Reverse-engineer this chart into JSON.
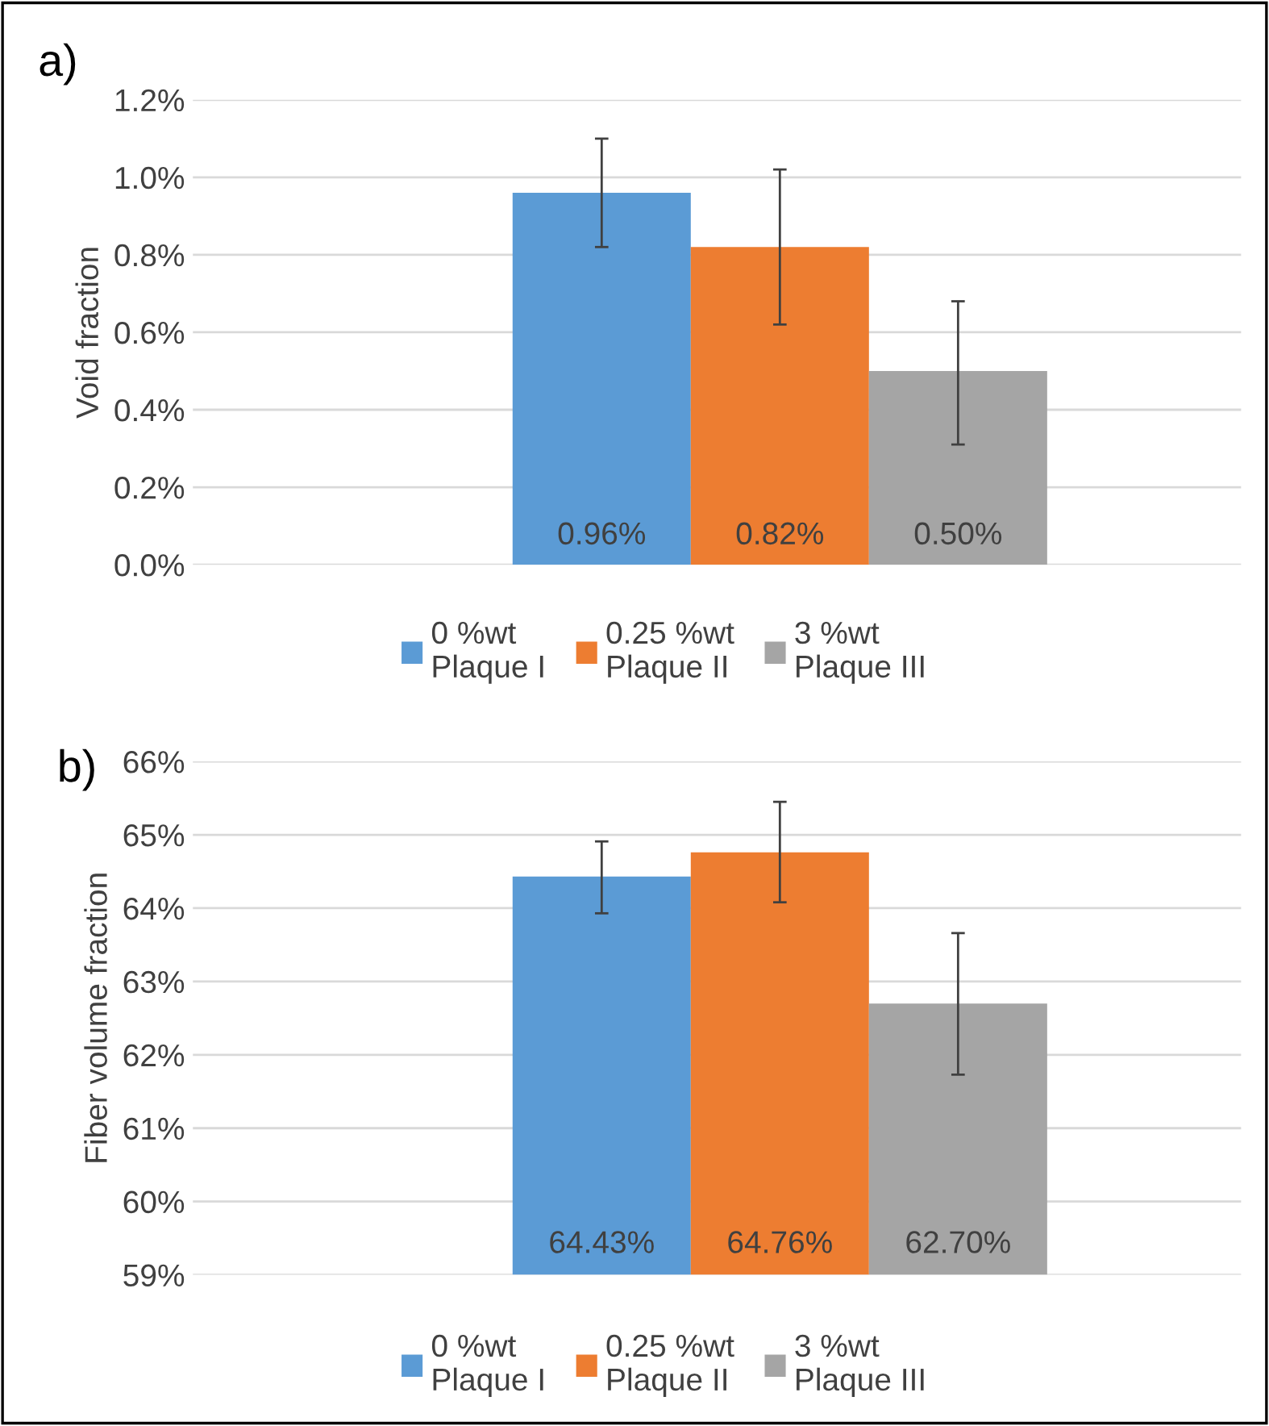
{
  "chart_data": [
    {
      "type": "bar",
      "annotations": [
        "a)"
      ],
      "ylabel": "Void fraction",
      "categories": [
        null
      ],
      "series": [
        {
          "name": "0 %wt\nPlaque I",
          "color": "#5b9bd5",
          "values": [
            0.96
          ],
          "errors": [
            [
              0.82,
              1.1
            ]
          ],
          "value_labels": [
            "0.96%"
          ]
        },
        {
          "name": "0.25 %wt\nPlaque II",
          "color": "#ed7d31",
          "values": [
            0.82
          ],
          "errors": [
            [
              0.62,
              1.02
            ]
          ],
          "value_labels": [
            "0.82%"
          ]
        },
        {
          "name": "3 %wt\nPlaque III",
          "color": "#a5a5a5",
          "values": [
            0.5
          ],
          "errors": [
            [
              0.31,
              0.68
            ]
          ],
          "value_labels": [
            "0.50%"
          ]
        }
      ],
      "ylim": [
        0,
        1.2
      ],
      "yticks": [
        {
          "value": 0,
          "label": "0.0%"
        },
        {
          "value": 0.2,
          "label": "0.2%"
        },
        {
          "value": 0.4,
          "label": "0.4%"
        },
        {
          "value": 0.6,
          "label": "0.6%"
        },
        {
          "value": 0.8,
          "label": "0.8%"
        },
        {
          "value": 1.0,
          "label": "1.0%"
        },
        {
          "value": 1.2,
          "label": "1.2%"
        }
      ],
      "grid": "y",
      "legend": "bottom"
    },
    {
      "type": "bar",
      "annotations": [
        "b)"
      ],
      "ylabel": "Fiber volume fraction",
      "categories": [
        null
      ],
      "series": [
        {
          "name": "0 %wt\nPlaque I",
          "color": "#5b9bd5",
          "values": [
            64.43
          ],
          "errors": [
            [
              63.93,
              64.91
            ]
          ],
          "value_labels": [
            "64.43%"
          ]
        },
        {
          "name": "0.25 %wt\nPlaque II",
          "color": "#ed7d31",
          "values": [
            64.76
          ],
          "errors": [
            [
              64.08,
              65.45
            ]
          ],
          "value_labels": [
            "64.76%"
          ]
        },
        {
          "name": "3 %wt\nPlaque III",
          "color": "#a5a5a5",
          "values": [
            62.7
          ],
          "errors": [
            [
              61.73,
              63.66
            ]
          ],
          "value_labels": [
            "62.70%"
          ]
        }
      ],
      "ylim": [
        59,
        66
      ],
      "yticks": [
        {
          "value": 59,
          "label": "59%"
        },
        {
          "value": 60,
          "label": "60%"
        },
        {
          "value": 61,
          "label": "61%"
        },
        {
          "value": 62,
          "label": "62%"
        },
        {
          "value": 63,
          "label": "63%"
        },
        {
          "value": 64,
          "label": "64%"
        },
        {
          "value": 65,
          "label": "65%"
        },
        {
          "value": 66,
          "label": "66%"
        }
      ],
      "grid": "y",
      "legend": "bottom"
    }
  ]
}
